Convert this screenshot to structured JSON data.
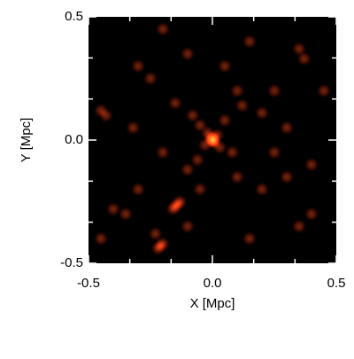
{
  "chart_data": {
    "type": "density-map",
    "xlabel": "X [Mpc]",
    "ylabel": "Y [Mpc]",
    "xlim": [
      -0.5,
      0.5
    ],
    "ylim": [
      -0.5,
      0.5
    ],
    "xticks": [
      {
        "value": -0.5,
        "label": "-0.5"
      },
      {
        "value": 0,
        "label": "0.0"
      },
      {
        "value": 0.5,
        "label": "0.5"
      }
    ],
    "yticks": [
      {
        "value": -0.5,
        "label": "-0.5"
      },
      {
        "value": 0,
        "label": "0.0"
      },
      {
        "value": 0.5,
        "label": "0.5"
      }
    ],
    "minor_ticks": 3,
    "background": "#000000",
    "x": [
      0,
      0.005,
      -0.005,
      0.01,
      -0.01,
      0,
      0.005,
      -0.02,
      0.02,
      -0.03,
      0.03,
      -0.15,
      -0.14,
      -0.16,
      -0.13,
      -0.21,
      -0.2,
      -0.22,
      -0.23,
      0.35,
      0.37,
      -0.45,
      -0.43,
      -0.08,
      -0.05,
      0.05,
      0.08,
      -0.1,
      -0.06,
      0.12,
      0.2,
      0.25,
      0.3,
      0.4,
      0.4,
      0.35,
      0.2,
      0.15,
      -0.3,
      -0.35,
      -0.4,
      -0.25,
      -0.3,
      -0.1,
      0.05,
      0.15,
      -0.2,
      -0.32,
      -0.2,
      0.1,
      -0.45,
      0.45,
      0.25,
      -0.1,
      -0.05,
      0.1,
      -0.15,
      0.3
    ],
    "y": [
      0,
      0.01,
      -0.005,
      -0.01,
      0.01,
      0.005,
      -0.005,
      0.03,
      0.02,
      -0.02,
      -0.03,
      -0.27,
      -0.26,
      -0.28,
      -0.25,
      -0.43,
      -0.42,
      -0.44,
      -0.38,
      0.37,
      0.33,
      0.12,
      0.1,
      0.1,
      0.06,
      0.08,
      -0.05,
      -0.12,
      -0.08,
      0.14,
      0.11,
      0.2,
      0.05,
      -0.1,
      -0.3,
      -0.35,
      -0.2,
      -0.4,
      -0.2,
      -0.3,
      -0.28,
      0.25,
      0.3,
      0.35,
      0.3,
      0.4,
      0.45,
      0.05,
      -0.05,
      -0.15,
      -0.4,
      0.2,
      -0.05,
      -0.35,
      -0.2,
      0.2,
      0.15,
      -0.15
    ]
  }
}
